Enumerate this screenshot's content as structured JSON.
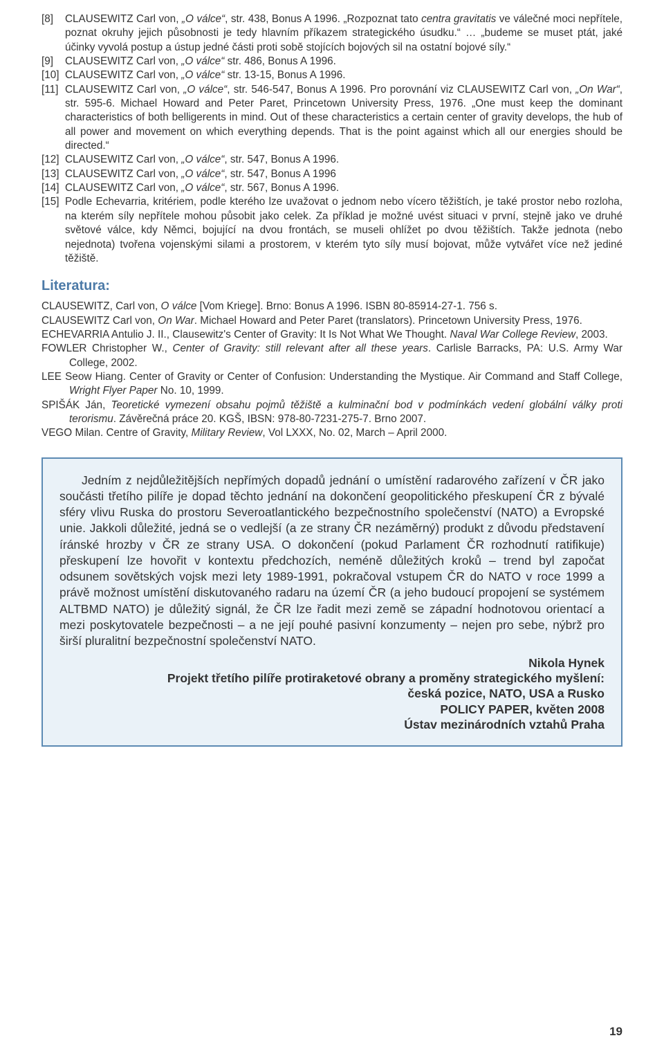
{
  "refs": [
    {
      "idx": "[8]",
      "html": "CLAUSEWITZ Carl von, <span class='italic'>„O válce“</span>, str. 438, Bonus A 1996. „Rozpoznat tato <span class='italic'>centra gravitatis</span> ve válečné moci nepřítele, poznat okruhy jejich působnosti je tedy hlavním příkazem strategického úsudku.“ … „budeme se muset ptát, jaké účinky vyvolá postup a ústup jedné části proti sobě stojících bojových sil na ostatní bojové síly.“"
    },
    {
      "idx": "[9]",
      "html": "CLAUSEWITZ Carl von, <span class='italic'>„O válce“</span> str. 486, Bonus A 1996."
    },
    {
      "idx": "[10]",
      "html": "CLAUSEWITZ Carl von, <span class='italic'>„O válce“</span> str. 13-15, Bonus A 1996."
    },
    {
      "idx": "[11]",
      "html": "CLAUSEWITZ Carl von, <span class='italic'>„O válce“</span>, str. 546-547, Bonus A 1996. Pro porovnání viz CLAUSEWITZ Carl von, <span class='italic'>„On War“</span>, str. 595-6. Michael Howard and Peter Paret, Princetown University Press, 1976. „One must keep the dominant characteristics of both belligerents in mind. Out of these characteristics a certain center of gravity develops, the hub of all power and movement on which everything depends. That is the point against which all our energies should be directed.“"
    },
    {
      "idx": "[12]",
      "html": "CLAUSEWITZ Carl von, <span class='italic'>„O válce“</span>, str. 547, Bonus A 1996."
    },
    {
      "idx": "[13]",
      "html": "CLAUSEWITZ Carl von, <span class='italic'>„O válce“</span>, str. 547, Bonus A 1996"
    },
    {
      "idx": "[14]",
      "html": "CLAUSEWITZ Carl von, <span class='italic'>„O válce“</span>, str. 567, Bonus A 1996."
    },
    {
      "idx": "[15]",
      "html": "Podle Echevarria, kritériem, podle kterého lze uvažovat o jednom nebo vícero těžištích, je také prostor nebo rozloha, na kterém síly nepřítele mohou působit jako celek. Za příklad je možné uvést situaci v první, stejně jako ve druhé světové válce, kdy Němci, bojující na dvou frontách, se museli ohlížet po dvou těžištích. Takže jednota (nebo nejednota) tvořena vojenskými silami a prostorem, v kterém tyto síly musí bojovat, může vytvářet více než jediné těžiště."
    }
  ],
  "literatura_heading": "Literatura:",
  "biblio": [
    "CLAUSEWITZ, Carl von, <span class='italic'>O válce</span> [Vom Kriege]. Brno: Bonus A 1996. ISBN 80-85914-27-1. 756 s.",
    "CLAUSEWITZ Carl von, <span class='italic'>On War</span>. Michael Howard and Peter Paret (translators). Princetown University Press, 1976.",
    "ECHEVARRIA Antulio J. II., Clausewitz's Center of Gravity: It Is Not What We Thought. <span class='italic'>Naval War College Review</span>, 2003.",
    "FOWLER Christopher W., <span class='italic'>Center of Gravity: still relevant after all these years</span>. Carlisle Barracks, PA: U.S. Army War College, 2002.",
    "LEE Seow Hiang. Center of Gravity or Center of Confusion: Understanding the Mystique. Air Command and Staff College, <span class='italic'>Wright Flyer Paper</span> No. 10, 1999.",
    "SPIŠÁK Ján, <span class='italic'>Teoretické vymezení obsahu pojmů těžiště a kulminační bod v podmínkách vedení globální války proti terorismu</span>. Závěrečná práce 20. KGŠ, IBSN: 978-80-7231-275-7. Brno 2007.",
    "VEGO Milan. Centre of Gravity, <span class='italic'>Military Review</span>, Vol LXXX, No. 02, March – April 2000."
  ],
  "callout_body": "Jedním z nejdůležitějších nepřímých dopadů jednání o umístění radarového zařízení v ČR jako součásti třetího pilíře je dopad těchto jednání na dokončení geopolitického přeskupení ČR z bývalé sféry vlivu Ruska do prostoru Severoatlantického bezpečnostního společenství (NATO) a Evropské unie. Jakkoli důležité, jedná se o vedlejší (a ze strany ČR nezáměrný) produkt z důvodu představení íránské hrozby v ČR ze strany USA. O dokončení (pokud Parlament ČR rozhodnutí ratifikuje) přeskupení lze hovořit v kontextu předchozích, neméně důležitých kroků – trend byl započat odsunem sovětských vojsk mezi lety 1989-1991, pokračoval vstupem ČR do NATO v roce 1999 a právě možnost umístění diskutovaného radaru na území ČR (a jeho budoucí propojení se systémem ALTBMD NATO) je důležitý signál, že ČR lze řadit mezi země se západní hodnotovou orientací a mezi poskytovatele bezpečnosti – a ne její pouhé pasivní konzumenty – nejen pro sebe, nýbrž pro širší pluralitní bezpečnostní společenství NATO.",
  "callout_attrib": [
    "Nikola Hynek",
    "Projekt třetího pilíře protiraketové obrany a proměny strategického myšlení:",
    "česká pozice, NATO, USA a Rusko",
    "POLICY PAPER, květen 2008",
    "Ústav mezinárodních vztahů Praha"
  ],
  "page_number": "19",
  "colors": {
    "heading": "#4c7aa7",
    "callout_border": "#5b8ab3",
    "callout_bg": "#eaf2f8",
    "text": "#333333"
  }
}
